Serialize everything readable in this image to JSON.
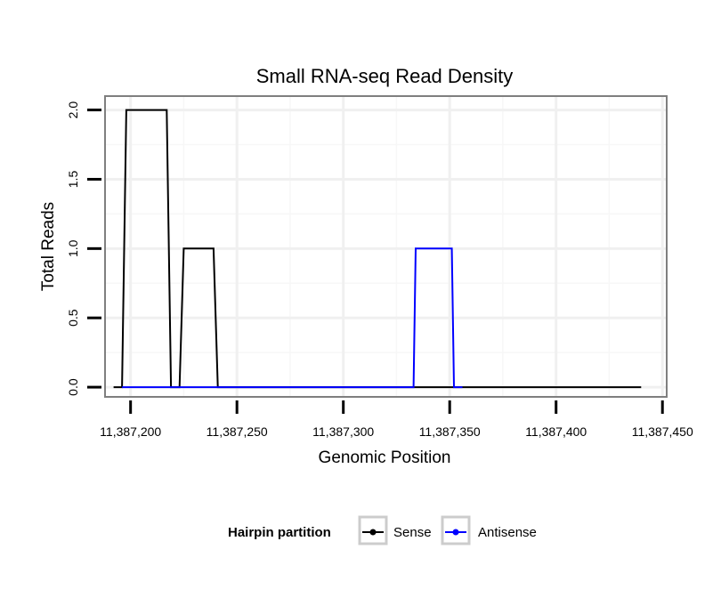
{
  "chart_data": {
    "type": "line",
    "title": "Small RNA-seq Read Density",
    "xlabel": "Genomic Position",
    "ylabel": "Total Reads",
    "xlim": [
      11387188,
      11387452
    ],
    "ylim": [
      -0.07,
      2.1
    ],
    "x_ticks": [
      11387200,
      11387250,
      11387300,
      11387350,
      11387400,
      11387450
    ],
    "x_tick_labels": [
      "11,387,200",
      "11,387,250",
      "11,387,300",
      "11,387,350",
      "11,387,400",
      "11,387,450"
    ],
    "y_ticks": [
      0.0,
      0.5,
      1.0,
      1.5,
      2.0
    ],
    "y_tick_labels": [
      "0.0",
      "0.5",
      "1.0",
      "1.5",
      "2.0"
    ],
    "grid": true,
    "legend": {
      "title": "Hairpin partition",
      "position": "bottom"
    },
    "series": [
      {
        "name": "Sense",
        "color": "#000000",
        "x": [
          11387192,
          11387196,
          11387198,
          11387217,
          11387219,
          11387223,
          11387225,
          11387239,
          11387241,
          11387440
        ],
        "y": [
          0,
          0,
          2,
          2,
          0,
          0,
          1,
          1,
          0,
          0
        ]
      },
      {
        "name": "Antisense",
        "color": "#0000ff",
        "x": [
          11387196,
          11387333,
          11387334,
          11387351,
          11387352,
          11387356
        ],
        "y": [
          0,
          0,
          1,
          1,
          0,
          0
        ]
      }
    ]
  }
}
